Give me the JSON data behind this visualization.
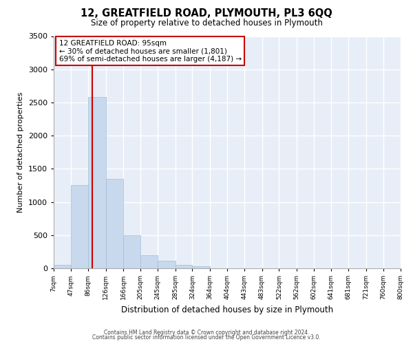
{
  "title": "12, GREATFIELD ROAD, PLYMOUTH, PL3 6QQ",
  "subtitle": "Size of property relative to detached houses in Plymouth",
  "xlabel": "Distribution of detached houses by size in Plymouth",
  "ylabel": "Number of detached properties",
  "bar_color": "#c8d9ee",
  "bar_edge_color": "#a0bcd8",
  "background_color": "#e8eef7",
  "grid_color": "#ffffff",
  "annotation_box_color": "#ffffff",
  "annotation_box_edge": "#cc0000",
  "red_line_color": "#cc0000",
  "bin_labels": [
    "7sqm",
    "47sqm",
    "86sqm",
    "126sqm",
    "166sqm",
    "205sqm",
    "245sqm",
    "285sqm",
    "324sqm",
    "364sqm",
    "404sqm",
    "443sqm",
    "483sqm",
    "522sqm",
    "562sqm",
    "602sqm",
    "641sqm",
    "681sqm",
    "721sqm",
    "760sqm",
    "800sqm"
  ],
  "bar_values": [
    50,
    1250,
    2580,
    1350,
    500,
    200,
    110,
    50,
    30,
    0,
    0,
    0,
    0,
    0,
    0,
    0,
    0,
    0,
    0,
    0
  ],
  "bin_edges": [
    7,
    47,
    86,
    126,
    166,
    205,
    245,
    285,
    324,
    364,
    404,
    443,
    483,
    522,
    562,
    602,
    641,
    681,
    721,
    760,
    800
  ],
  "ylim": [
    0,
    3500
  ],
  "yticks": [
    0,
    500,
    1000,
    1500,
    2000,
    2500,
    3000,
    3500
  ],
  "property_size": 95,
  "property_label": "12 GREATFIELD ROAD: 95sqm",
  "annotation_line1": "← 30% of detached houses are smaller (1,801)",
  "annotation_line2": "69% of semi-detached houses are larger (4,187) →",
  "footer1": "Contains HM Land Registry data © Crown copyright and database right 2024.",
  "footer2": "Contains public sector information licensed under the Open Government Licence v3.0."
}
